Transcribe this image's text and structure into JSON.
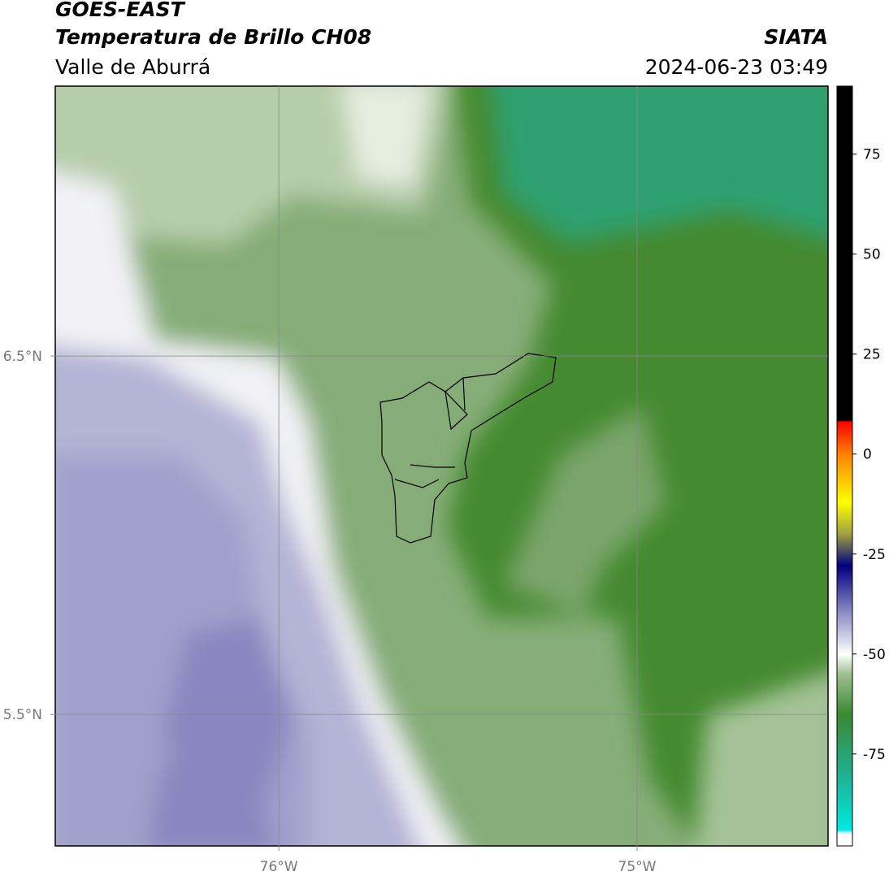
{
  "header": {
    "title": "GOES-EAST",
    "subtitle": "Temperatura de Brillo CH08",
    "region": "Valle de Aburrá",
    "source": "SIATA",
    "timestamp": "2024-06-23 03:49"
  },
  "map": {
    "xlim": [
      -76.624,
      -74.467
    ],
    "ylim": [
      5.133,
      7.253
    ],
    "xticks": [
      {
        "value": -76,
        "label": "76°W"
      },
      {
        "value": -75,
        "label": "75°W"
      }
    ],
    "yticks": [
      {
        "value": 6.5,
        "label": "6.5°N"
      },
      {
        "value": 5.5,
        "label": "5.5°N"
      }
    ],
    "grid": true
  },
  "colorbar": {
    "lim": [
      -98,
      92
    ],
    "ticks": [
      75,
      50,
      25,
      0,
      -25,
      -50,
      -75
    ],
    "stops": [
      {
        "value": -98,
        "color": "#ffffff"
      },
      {
        "value": -95,
        "color": "#ffffff"
      },
      {
        "value": -94,
        "color": "#00e8e0"
      },
      {
        "value": -80,
        "color": "#20b090"
      },
      {
        "value": -65,
        "color": "#3a8a30"
      },
      {
        "value": -55,
        "color": "#a0c090"
      },
      {
        "value": -50,
        "color": "#ffffff"
      },
      {
        "value": -40,
        "color": "#9090c8"
      },
      {
        "value": -28,
        "color": "#000080"
      },
      {
        "value": -20,
        "color": "#a0a040"
      },
      {
        "value": -12,
        "color": "#ffff00"
      },
      {
        "value": 0,
        "color": "#ff8000"
      },
      {
        "value": 8,
        "color": "#ff0000"
      },
      {
        "value": 8.5,
        "color": "#000000"
      },
      {
        "value": 92,
        "color": "#000000"
      }
    ]
  }
}
